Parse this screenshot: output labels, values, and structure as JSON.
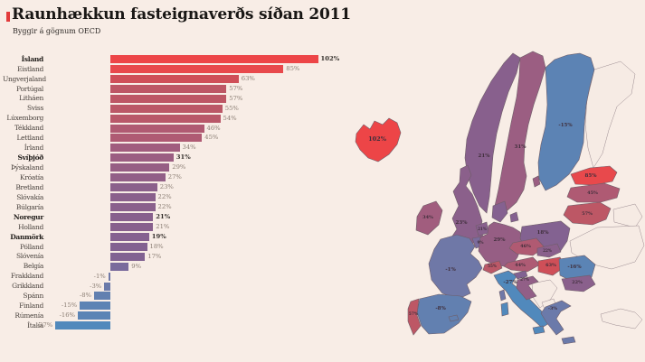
{
  "title": "Raunhækkun fasteignaverðs síðan 2011",
  "subtitle": "Byggir á gögnum OECD",
  "colors": {
    "background": "#f8ede6",
    "map_outline": "#6e5d68",
    "scale": [
      {
        "v": -30,
        "c": "#4e8abe"
      },
      {
        "v": -8,
        "c": "#6280b0"
      },
      {
        "v": -1,
        "c": "#6f78a7"
      },
      {
        "v": 9,
        "c": "#7a6b9c"
      },
      {
        "v": 17,
        "c": "#816292"
      },
      {
        "v": 21,
        "c": "#88608d"
      },
      {
        "v": 27,
        "c": "#925f87"
      },
      {
        "v": 34,
        "c": "#a15d7e"
      },
      {
        "v": 46,
        "c": "#b05a72"
      },
      {
        "v": 57,
        "c": "#bd5765"
      },
      {
        "v": 63,
        "c": "#cf4f58"
      },
      {
        "v": 80,
        "c": "#e64a4d"
      },
      {
        "v": 105,
        "c": "#ee4446"
      }
    ]
  },
  "chart_data": {
    "type": "bar",
    "orientation": "horizontal",
    "title": "Raunhækkun fasteignaverðs síðan 2011",
    "subtitle": "Byggir á gögnum OECD",
    "unit": "%",
    "xlim": [
      -30,
      105
    ],
    "grid": false,
    "legend": "none",
    "categories": [
      "Ísland",
      "Eistland",
      "Ungverjaland",
      "Portúgal",
      "Litháen",
      "Sviss",
      "Lúxemborg",
      "Tékkland",
      "Lettland",
      "Írland",
      "Svíþjóð",
      "Þýskaland",
      "Króatía",
      "Bretland",
      "Slóvakía",
      "Búlgaría",
      "Noregur",
      "Holland",
      "Danmörk",
      "Pólland",
      "Slóvenía",
      "Belgía",
      "Frakkland",
      "Grikkland",
      "Spánn",
      "Finland",
      "Rúmenía",
      "Ítalía"
    ],
    "values": [
      102,
      85,
      63,
      57,
      57,
      55,
      54,
      46,
      45,
      34,
      31,
      29,
      27,
      23,
      22,
      22,
      21,
      21,
      19,
      18,
      17,
      9,
      -1,
      -3,
      -8,
      -15,
      -16,
      -27
    ],
    "labels": [
      "102%",
      "85%",
      "63%",
      "57%",
      "57%",
      "55%",
      "54%",
      "46%",
      "45%",
      "34%",
      "31%",
      "29%",
      "27%",
      "23%",
      "22%",
      "22%",
      "21%",
      "21%",
      "19%",
      "18%",
      "17%",
      "9%",
      "-1%",
      "-3%",
      "-8%",
      "-15%",
      "-16%",
      "-27%"
    ],
    "bold": [
      "Ísland",
      "Svíþjóð",
      "Noregur",
      "Danmörk"
    ]
  },
  "map": {
    "countries": [
      {
        "id": "iceland",
        "name": "Ísland",
        "value": 102,
        "label": "102%"
      },
      {
        "id": "norway",
        "name": "Noregur",
        "value": 21,
        "label": "21%"
      },
      {
        "id": "sweden",
        "name": "Svíþjóð",
        "value": 31,
        "label": "31%"
      },
      {
        "id": "finland",
        "name": "Finland",
        "value": -15,
        "label": "-15%"
      },
      {
        "id": "estonia",
        "name": "Eistland",
        "value": 85,
        "label": "85%"
      },
      {
        "id": "latvia",
        "name": "Lettland",
        "value": 45,
        "label": "45%"
      },
      {
        "id": "lithuania",
        "name": "Litháen",
        "value": 57,
        "label": "57%"
      },
      {
        "id": "denmark",
        "name": "Danmörk",
        "value": 19,
        "label": ""
      },
      {
        "id": "ireland",
        "name": "Írland",
        "value": 34,
        "label": "34%"
      },
      {
        "id": "uk",
        "name": "Bretland",
        "value": 23,
        "label": "23%"
      },
      {
        "id": "netherlands",
        "name": "Holland",
        "value": 21,
        "label": "21%"
      },
      {
        "id": "belgium",
        "name": "Belgía",
        "value": 9,
        "label": "9%"
      },
      {
        "id": "luxembourg",
        "name": "Lúxemborg",
        "value": 54,
        "label": ""
      },
      {
        "id": "germany",
        "name": "Þýskaland",
        "value": 29,
        "label": "29%"
      },
      {
        "id": "poland",
        "name": "Pólland",
        "value": 18,
        "label": "18%"
      },
      {
        "id": "czech",
        "name": "Tékkland",
        "value": 46,
        "label": "46%"
      },
      {
        "id": "slovakia",
        "name": "Slóvakía",
        "value": 22,
        "label": "22%"
      },
      {
        "id": "austria",
        "name": "Austurríki",
        "value": 44,
        "label": "44%"
      },
      {
        "id": "switzerland",
        "name": "Sviss",
        "value": 55,
        "label": "55%"
      },
      {
        "id": "hungary",
        "name": "Ungverjaland",
        "value": 63,
        "label": "63%"
      },
      {
        "id": "france",
        "name": "Frakkland",
        "value": -1,
        "label": "-1%"
      },
      {
        "id": "portugal",
        "name": "Portúgal",
        "value": 57,
        "label": "57%"
      },
      {
        "id": "spain",
        "name": "Spánn",
        "value": -8,
        "label": "-8%"
      },
      {
        "id": "italy",
        "name": "Ítalía",
        "value": -27,
        "label": "-27%"
      },
      {
        "id": "slovenia",
        "name": "Slóvenía",
        "value": 17,
        "label": ""
      },
      {
        "id": "croatia",
        "name": "Króatía",
        "value": 27,
        "label": "27%"
      },
      {
        "id": "romania",
        "name": "Rúmenía",
        "value": -16,
        "label": "-16%"
      },
      {
        "id": "bulgaria",
        "name": "Búlgaría",
        "value": 22,
        "label": "22%"
      },
      {
        "id": "greece",
        "name": "Grikkland",
        "value": -3,
        "label": "-3%"
      }
    ]
  }
}
